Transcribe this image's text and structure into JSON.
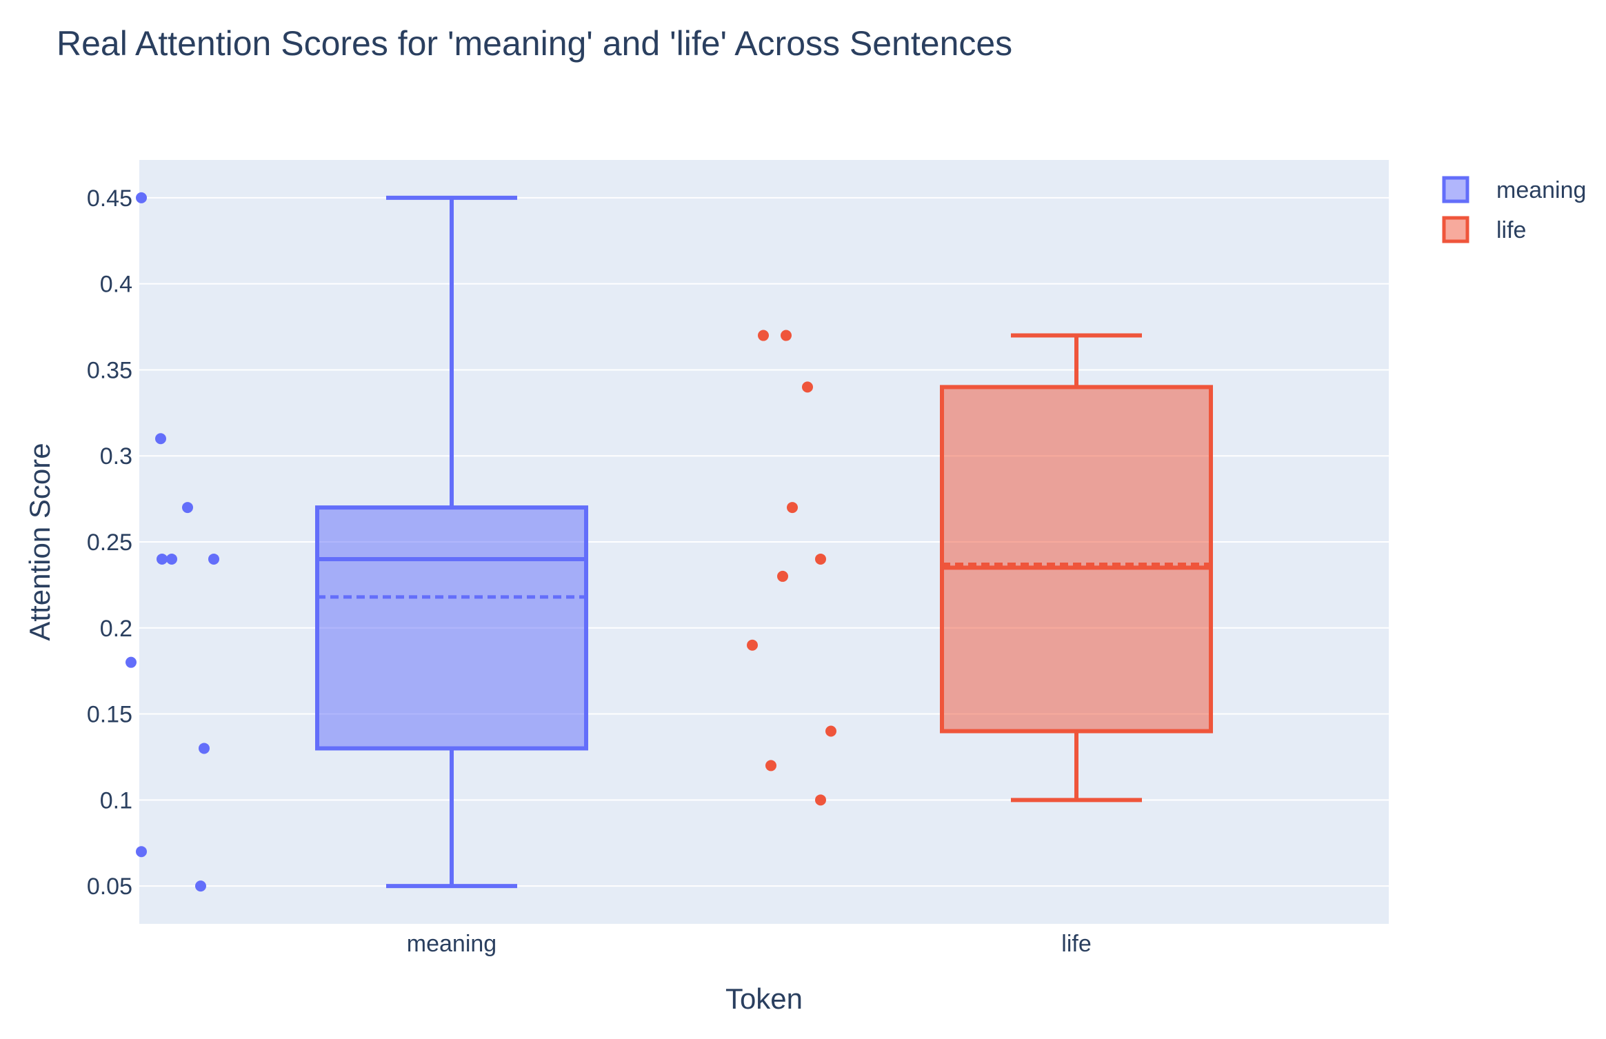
{
  "chart_data": {
    "type": "box",
    "title": "Real Attention Scores for 'meaning' and 'life' Across Sentences",
    "xlabel": "Token",
    "ylabel": "Attention Score",
    "categories": [
      "meaning",
      "life"
    ],
    "ylim": [
      0.028,
      0.472
    ],
    "yticks": [
      0.05,
      0.1,
      0.15,
      0.2,
      0.25,
      0.3,
      0.35,
      0.4,
      0.45
    ],
    "ytick_labels": [
      "0.05",
      "0.1",
      "0.15",
      "0.2",
      "0.25",
      "0.3",
      "0.35",
      "0.4",
      "0.45"
    ],
    "grid": true,
    "legend_position": "top-right",
    "boxpoints": "all",
    "boxmean": true,
    "series": [
      {
        "name": "meaning",
        "color": "#636efa",
        "fill": "rgba(99,110,250,0.5)",
        "category": "meaning",
        "min": 0.05,
        "q1": 0.13,
        "median": 0.24,
        "q3": 0.27,
        "max": 0.45,
        "mean": 0.218,
        "points": [
          0.45,
          0.31,
          0.27,
          0.24,
          0.24,
          0.24,
          0.18,
          0.13,
          0.07,
          0.05
        ]
      },
      {
        "name": "life",
        "color": "#ef553b",
        "fill": "rgba(239,85,59,0.5)",
        "category": "life",
        "min": 0.1,
        "q1": 0.14,
        "median": 0.235,
        "q3": 0.34,
        "max": 0.37,
        "mean": 0.237,
        "points": [
          0.37,
          0.37,
          0.34,
          0.27,
          0.24,
          0.23,
          0.19,
          0.14,
          0.12,
          0.1
        ]
      }
    ]
  }
}
